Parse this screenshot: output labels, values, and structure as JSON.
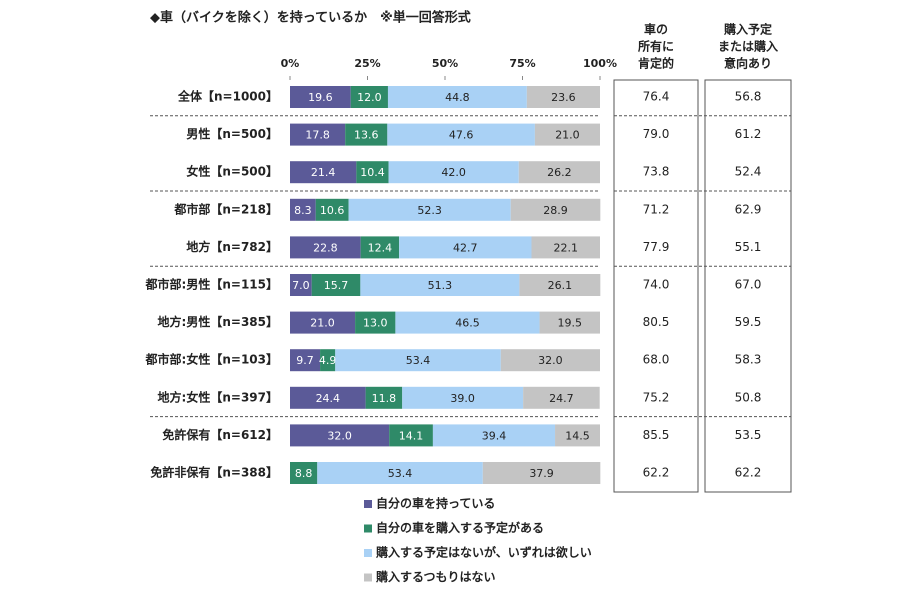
{
  "chart_data": {
    "type": "stacked-bar-horizontal",
    "title": "◆車（バイクを除く）を持っているか　※単一回答形式",
    "categories": [
      "全体【n=1000】",
      "男性【n=500】",
      "女性【n=500】",
      "都市部【n=218】",
      "地方【n=782】",
      "都市部:男性【n=115】",
      "地方:男性【n=385】",
      "都市部:女性【n=103】",
      "地方:女性【n=397】",
      "免許保有【n=612】",
      "免許非保有【n=388】"
    ],
    "xlim": [
      0,
      100
    ],
    "xticks": [
      {
        "value": 0,
        "label": "0%"
      },
      {
        "value": 25,
        "label": "25%"
      },
      {
        "value": 50,
        "label": "50%"
      },
      {
        "value": 75,
        "label": "75%"
      },
      {
        "value": 100,
        "label": "100%"
      }
    ],
    "series": [
      {
        "name": "自分の車を持っている",
        "color": "#5b5a98",
        "values": [
          19.6,
          17.8,
          21.4,
          8.3,
          22.8,
          7.0,
          21.0,
          9.7,
          24.4,
          32.0,
          0
        ],
        "value_labels": [
          "19.6",
          "17.8",
          "21.4",
          "8.3",
          "22.8",
          "7.0",
          "21.0",
          "9.7",
          "24.4",
          "32.0",
          null
        ]
      },
      {
        "name": "自分の車を購入する予定がある",
        "color": "#2f8a68",
        "values": [
          12.0,
          13.6,
          10.4,
          10.6,
          12.4,
          15.7,
          13.0,
          4.9,
          11.8,
          14.1,
          8.8
        ],
        "value_labels": [
          "12.0",
          "13.6",
          "10.4",
          "10.6",
          "12.4",
          "15.7",
          "13.0",
          "4.9",
          "11.8",
          "14.1",
          "8.8"
        ]
      },
      {
        "name": "購入する予定はないが、いずれは欲しい",
        "color": "#a9d1f5",
        "values": [
          44.8,
          47.6,
          42.0,
          52.3,
          42.7,
          51.3,
          46.5,
          53.4,
          39.0,
          39.4,
          53.4
        ],
        "value_labels": [
          "44.8",
          "47.6",
          "42.0",
          "52.3",
          "42.7",
          "51.3",
          "46.5",
          "53.4",
          "39.0",
          "39.4",
          "53.4"
        ]
      },
      {
        "name": "購入するつもりはない",
        "color": "#c4c4c4",
        "values": [
          23.6,
          21.0,
          26.2,
          28.9,
          22.1,
          26.1,
          19.5,
          32.0,
          24.7,
          14.5,
          37.9
        ],
        "value_labels": [
          "23.6",
          "21.0",
          "26.2",
          "28.9",
          "22.1",
          "26.1",
          "19.5",
          "32.0",
          "24.7",
          "14.5",
          "37.9"
        ]
      }
    ]
  },
  "table": {
    "columns": [
      {
        "header": [
          "車の",
          "所有に",
          "肯定的"
        ],
        "values": [
          "76.4",
          "79.0",
          "73.8",
          "71.2",
          "77.9",
          "74.0",
          "80.5",
          "68.0",
          "75.2",
          "85.5",
          "62.2"
        ]
      },
      {
        "header": [
          "購入予定",
          "または購入",
          "意向あり"
        ],
        "values": [
          "56.8",
          "61.2",
          "52.4",
          "62.9",
          "55.1",
          "67.0",
          "59.5",
          "58.3",
          "50.8",
          "53.5",
          "62.2"
        ]
      }
    ]
  }
}
